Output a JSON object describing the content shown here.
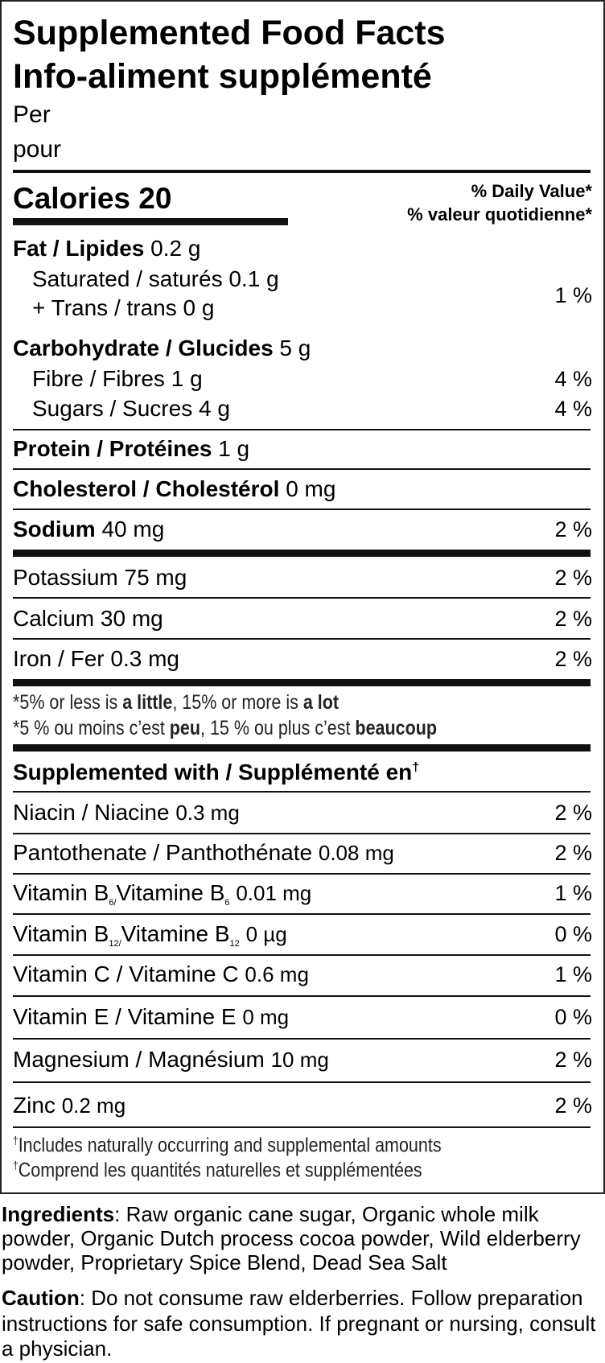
{
  "title_en": "Supplemented Food Facts",
  "title_fr": "Info-aliment supplémenté",
  "per": "Per",
  "pour": "pour",
  "calories_label": "Calories",
  "calories_value": "20",
  "dv_en": "% Daily Value*",
  "dv_fr": "% valeur quotidienne*",
  "nutrients": [
    {
      "label": "Fat / Lipides",
      "amount": "0.2 g"
    },
    {
      "label": "Saturated / saturés",
      "amount": "0.1 g"
    },
    {
      "label": "+ Trans / trans",
      "amount": "0 g",
      "dv": "1 %"
    },
    {
      "label": "Carbohydrate / Glucides",
      "amount": "5 g"
    },
    {
      "label": "Fibre / Fibres",
      "amount": "1 g",
      "dv": "4 %"
    },
    {
      "label": "Sugars / Sucres",
      "amount": "4 g",
      "dv": "4 %"
    },
    {
      "label": "Protein / Protéines",
      "amount": "1 g"
    },
    {
      "label": "Cholesterol / Cholestérol",
      "amount": "0 mg"
    },
    {
      "label": "Sodium",
      "amount": "40 mg",
      "dv": "2 %"
    },
    {
      "label": "Potassium",
      "amount": "75 mg",
      "dv": "2 %"
    },
    {
      "label": "Calcium",
      "amount": "30 mg",
      "dv": "2 %"
    },
    {
      "label": "Iron / Fer",
      "amount": "0.3 mg",
      "dv": "2 %"
    }
  ],
  "footnote1": {
    "a": "*5% or less is ",
    "b": "a little",
    "c": ", 15% or more is ",
    "d": "a lot"
  },
  "footnote2": {
    "a": "*5 % ou moins c’est ",
    "b": "peu",
    "c": ", 15 % ou plus c’est ",
    "d": "beaucoup"
  },
  "supplemented_heading": "Supplemented with / Supplémenté en",
  "dagger": "†",
  "supplements": [
    {
      "label": "Niacin / Niacine",
      "amount": "0.3 mg",
      "dv": "2 %"
    },
    {
      "label": "Pantothenate / Panthothénate",
      "amount": "0.08 mg",
      "dv": "2 %"
    },
    {
      "label_a": "Vitamin B",
      "sub_a": "6",
      "sep": "/",
      "label_b": "Vitamine B",
      "sub_b": "6",
      "amount": "0.01 mg",
      "dv": "1 %"
    },
    {
      "label_a": "Vitamin B",
      "sub_a": "12",
      "sep": "/",
      "label_b": "Vitamine B",
      "sub_b": "12",
      "amount": "0 µg",
      "dv": "0 %"
    },
    {
      "label": "Vitamin C / Vitamine C",
      "amount": "0.6 mg",
      "dv": "1 %"
    },
    {
      "label": "Vitamin E / Vitamine E",
      "amount": "0 mg",
      "dv": "0 %"
    },
    {
      "label": "Magnesium / Magnésium",
      "amount": "10 mg",
      "dv": "2 %"
    },
    {
      "label": "Zinc",
      "amount": "0.2 mg",
      "dv": "2 %"
    }
  ],
  "dagger_note_en": "Includes naturally occurring and supplemental amounts",
  "dagger_note_fr": "Comprend les quantités naturelles et supplémentées",
  "ingredients_label": "Ingredients",
  "ingredients_text": ": Raw organic cane sugar, Organic whole milk powder, Organic Dutch process cocoa powder, Wild elderberry powder, Proprietary Spice Blend, Dead Sea Salt",
  "caution_label": "Caution",
  "caution_text": ": Do not consume raw elderberries. Follow preparation instructions for safe consumption. If pregnant or nursing, consult a physician."
}
